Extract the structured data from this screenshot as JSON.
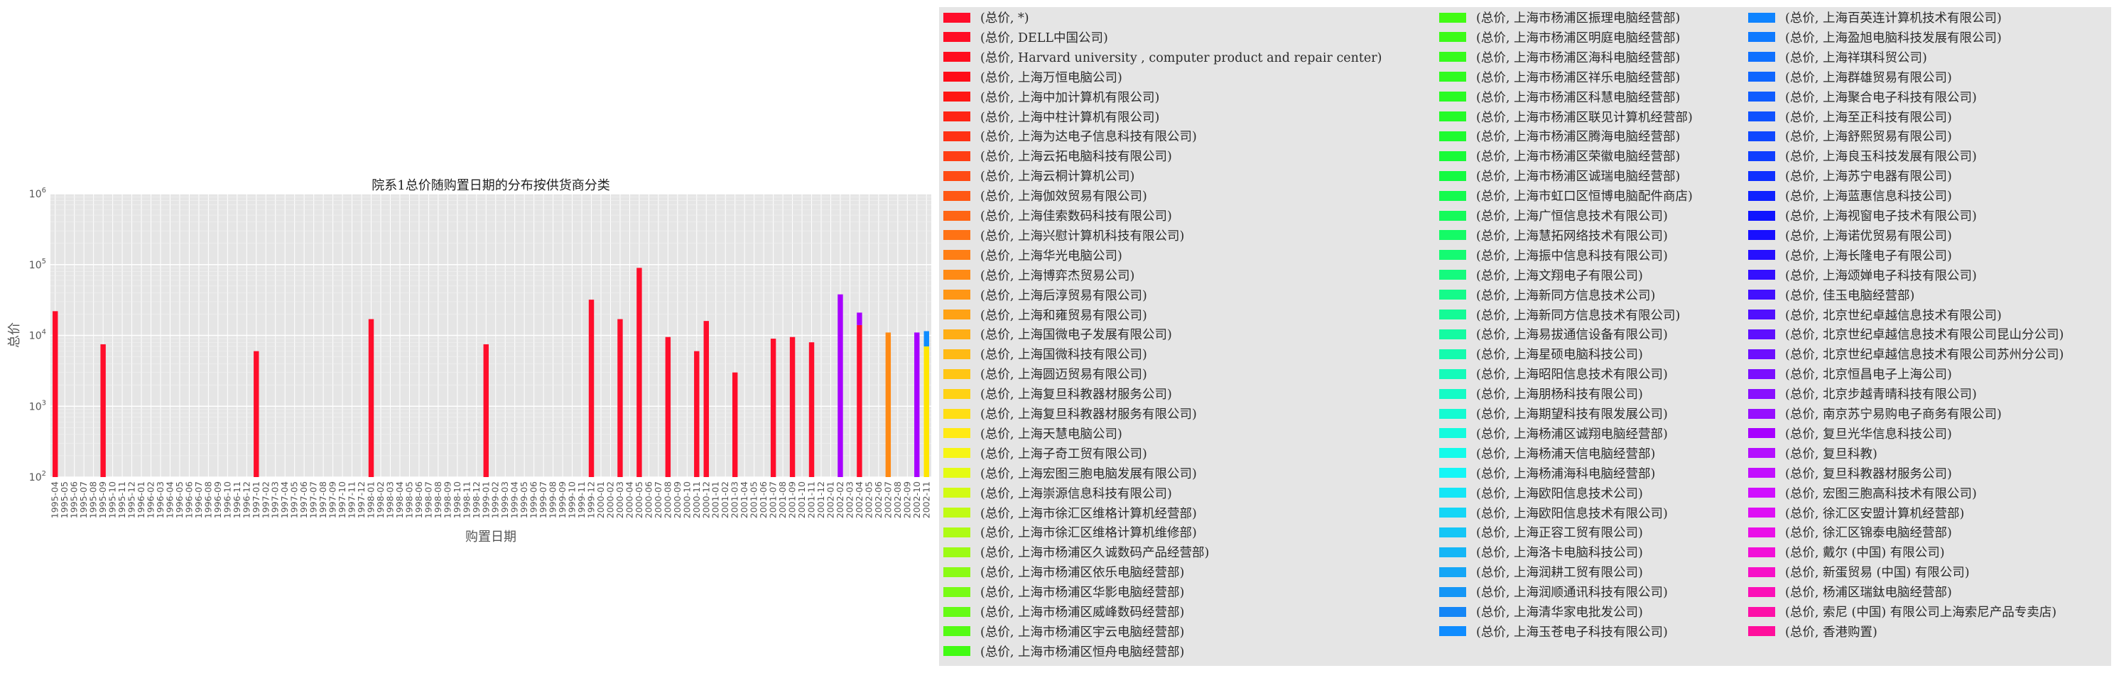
{
  "chart_data": {
    "type": "bar",
    "title": "院系1总价随购置日期的分布按供货商分类",
    "xlabel": "购置日期",
    "ylabel": "总价",
    "yscale": "log",
    "ylim": [
      100,
      1000000
    ],
    "y_ticks": [
      {
        "value": 100,
        "base": "10",
        "exp": "2"
      },
      {
        "value": 1000,
        "base": "10",
        "exp": "3"
      },
      {
        "value": 10000,
        "base": "10",
        "exp": "4"
      },
      {
        "value": 100000,
        "base": "10",
        "exp": "5"
      },
      {
        "value": 1000000,
        "base": "10",
        "exp": "6"
      }
    ],
    "grid": true,
    "stacked": true,
    "legend_position": "outside right",
    "categories": [
      "1995-04",
      "1995-05",
      "1995-06",
      "1995-07",
      "1995-08",
      "1995-09",
      "1995-10",
      "1995-11",
      "1995-12",
      "1996-01",
      "1996-02",
      "1996-03",
      "1996-04",
      "1996-05",
      "1996-06",
      "1996-07",
      "1996-08",
      "1996-09",
      "1996-10",
      "1996-11",
      "1996-12",
      "1997-01",
      "1997-02",
      "1997-03",
      "1997-04",
      "1997-05",
      "1997-06",
      "1997-07",
      "1997-08",
      "1997-09",
      "1997-10",
      "1997-11",
      "1997-12",
      "1998-01",
      "1998-02",
      "1998-03",
      "1998-04",
      "1998-05",
      "1998-06",
      "1998-07",
      "1998-08",
      "1998-09",
      "1998-10",
      "1998-11",
      "1998-12",
      "1999-01",
      "1999-02",
      "1999-03",
      "1999-04",
      "1999-05",
      "1999-06",
      "1999-07",
      "1999-08",
      "1999-09",
      "1999-10",
      "1999-11",
      "1999-12",
      "2000-01",
      "2000-02",
      "2000-03",
      "2000-04",
      "2000-05",
      "2000-06",
      "2000-07",
      "2000-08",
      "2000-09",
      "2000-10",
      "2000-11",
      "2000-12",
      "2001-01",
      "2001-02",
      "2001-03",
      "2001-04",
      "2001-05",
      "2001-06",
      "2001-07",
      "2001-08",
      "2001-09",
      "2001-10",
      "2001-11",
      "2001-12",
      "2002-01",
      "2002-02",
      "2002-03",
      "2002-04",
      "2002-05",
      "2002-06",
      "2002-07",
      "2002-08",
      "2002-09",
      "2002-10",
      "2002-11"
    ],
    "bars": [
      {
        "category": "1995-04",
        "color": "#ff0d2a",
        "y0": 100,
        "y1": 22000
      },
      {
        "category": "1995-09",
        "color": "#ff0d2a",
        "y0": 100,
        "y1": 7500
      },
      {
        "category": "1997-01",
        "color": "#ff0d2a",
        "y0": 100,
        "y1": 6000
      },
      {
        "category": "1998-01",
        "color": "#ff0d2a",
        "y0": 100,
        "y1": 17000
      },
      {
        "category": "1999-01",
        "color": "#ff0d2a",
        "y0": 100,
        "y1": 7500
      },
      {
        "category": "1999-12",
        "color": "#ff0d2a",
        "y0": 100,
        "y1": 32000
      },
      {
        "category": "2000-03",
        "color": "#ff0d2a",
        "y0": 100,
        "y1": 17000
      },
      {
        "category": "2000-05",
        "color": "#ff0d2a",
        "y0": 100,
        "y1": 90000
      },
      {
        "category": "2000-08",
        "color": "#ff0d2a",
        "y0": 100,
        "y1": 9500
      },
      {
        "category": "2000-11",
        "color": "#ff0d2a",
        "y0": 100,
        "y1": 6000
      },
      {
        "category": "2000-12",
        "color": "#ff0d2a",
        "y0": 100,
        "y1": 16000
      },
      {
        "category": "2001-03",
        "color": "#ff0d2a",
        "y0": 100,
        "y1": 3000
      },
      {
        "category": "2001-07",
        "color": "#ff0d2a",
        "y0": 100,
        "y1": 9000
      },
      {
        "category": "2001-09",
        "color": "#ff0d2a",
        "y0": 100,
        "y1": 9500
      },
      {
        "category": "2001-11",
        "color": "#ff0d2a",
        "y0": 100,
        "y1": 8000
      },
      {
        "category": "2002-02",
        "color": "#a700ff",
        "y0": 100,
        "y1": 38000
      },
      {
        "category": "2002-04",
        "color": "#ff0d2a",
        "y0": 100,
        "y1": 14000
      },
      {
        "category": "2002-04",
        "color": "#a700ff",
        "y0": 14000,
        "y1": 21000
      },
      {
        "category": "2002-07",
        "color": "#ff8a14",
        "y0": 100,
        "y1": 11000
      },
      {
        "category": "2002-10",
        "color": "#a700ff",
        "y0": 100,
        "y1": 11000
      },
      {
        "category": "2002-11",
        "color": "#ffe600",
        "y0": 100,
        "y1": 7000
      },
      {
        "category": "2002-11",
        "color": "#0f8cff",
        "y0": 7000,
        "y1": 11500
      }
    ],
    "legend": [
      {
        "label": "(总价, *)",
        "color": "#ff0d2a"
      },
      {
        "label": "(总价, DELL中国公司)",
        "color": "#ff0d24"
      },
      {
        "label": "(总价, Harvard university , computer product and repair center)",
        "color": "#ff0d1e"
      },
      {
        "label": "(总价, 上海万恒电脑公司)",
        "color": "#ff0d18"
      },
      {
        "label": "(总价, 上海中加计算机有限公司)",
        "color": "#ff1714"
      },
      {
        "label": "(总价, 上海中柱计算机有限公司)",
        "color": "#ff2414"
      },
      {
        "label": "(总价, 上海为达电子信息科技有限公司)",
        "color": "#ff3114"
      },
      {
        "label": "(总价, 上海云拓电脑科技有限公司)",
        "color": "#ff3e14"
      },
      {
        "label": "(总价, 上海云桐计算机公司)",
        "color": "#ff4b14"
      },
      {
        "label": "(总价, 上海伽效贸易有限公司)",
        "color": "#ff5814"
      },
      {
        "label": "(总价, 上海佳索数码科技有限公司)",
        "color": "#ff6514"
      },
      {
        "label": "(总价, 上海兴慰计算机科技有限公司)",
        "color": "#ff7214"
      },
      {
        "label": "(总价, 上海华光电脑公司)",
        "color": "#ff7e14"
      },
      {
        "label": "(总价, 上海博弈杰贸易公司)",
        "color": "#ff8a14"
      },
      {
        "label": "(总价, 上海后淳贸易有限公司)",
        "color": "#ff9614"
      },
      {
        "label": "(总价, 上海和雍贸易有限公司)",
        "color": "#ffa214"
      },
      {
        "label": "(总价, 上海国微电子发展有限公司)",
        "color": "#ffae14"
      },
      {
        "label": "(总价, 上海国微科技有限公司)",
        "color": "#ffba14"
      },
      {
        "label": "(总价, 上海圆迈贸易有限公司)",
        "color": "#ffc614"
      },
      {
        "label": "(总价, 上海复旦科教器材服务公司)",
        "color": "#ffd214"
      },
      {
        "label": "(总价, 上海复旦科教器材服务有限公司)",
        "color": "#ffde14"
      },
      {
        "label": "(总价, 上海天慧电脑公司)",
        "color": "#ffea14"
      },
      {
        "label": "(总价, 上海子奇工贸有限公司)",
        "color": "#f6f514"
      },
      {
        "label": "(总价, 上海宏图三胞电脑发展有限公司)",
        "color": "#e4fb14"
      },
      {
        "label": "(总价, 上海崇源信息科技有限公司)",
        "color": "#d2fb14"
      },
      {
        "label": "(总价, 上海市徐汇区维格计算机经营部)",
        "color": "#c0fb14"
      },
      {
        "label": "(总价, 上海市徐汇区维格计算机维修部)",
        "color": "#aefb14"
      },
      {
        "label": "(总价, 上海市杨浦区久诚数码产品经营部)",
        "color": "#9cfb14"
      },
      {
        "label": "(总价, 上海市杨浦区依乐电脑经营部)",
        "color": "#8afb14"
      },
      {
        "label": "(总价, 上海市杨浦区华影电脑经营部)",
        "color": "#78fb14"
      },
      {
        "label": "(总价, 上海市杨浦区威峰数码经营部)",
        "color": "#66fb14"
      },
      {
        "label": "(总价, 上海市杨浦区宇云电脑经营部)",
        "color": "#54fb14"
      },
      {
        "label": "(总价, 上海市杨浦区恒舟电脑经营部)",
        "color": "#42fb14"
      },
      {
        "label": "(总价, 上海市杨浦区振理电脑经营部)",
        "color": "#42fb14"
      },
      {
        "label": "(总价, 上海市杨浦区明庭电脑经营部)",
        "color": "#3cfb18"
      },
      {
        "label": "(总价, 上海市杨浦区海科电脑经营部)",
        "color": "#36fb1c"
      },
      {
        "label": "(总价, 上海市杨浦区祥乐电脑经营部)",
        "color": "#30fb20"
      },
      {
        "label": "(总价, 上海市杨浦区科慧电脑经营部)",
        "color": "#2afb24"
      },
      {
        "label": "(总价, 上海市杨浦区联见计算机经营部)",
        "color": "#24fb28"
      },
      {
        "label": "(总价, 上海市杨浦区腾海电脑经营部)",
        "color": "#1efb30"
      },
      {
        "label": "(总价, 上海市杨浦区荣徽电脑经营部)",
        "color": "#18fb38"
      },
      {
        "label": "(总价, 上海市杨浦区诚瑞电脑经营部)",
        "color": "#14fb42"
      },
      {
        "label": "(总价, 上海市虹口区恒博电脑配件商店)",
        "color": "#14fb4e"
      },
      {
        "label": "(总价, 上海广恒信息技术有限公司)",
        "color": "#14fb5a"
      },
      {
        "label": "(总价, 上海慧拓网络技术有限公司)",
        "color": "#14fb66"
      },
      {
        "label": "(总价, 上海振中信息科技有限公司)",
        "color": "#14fb72"
      },
      {
        "label": "(总价, 上海文翔电子有限公司)",
        "color": "#14fb7e"
      },
      {
        "label": "(总价, 上海新同方信息技术公司)",
        "color": "#14fb8a"
      },
      {
        "label": "(总价, 上海新同方信息技术有限公司)",
        "color": "#14fb96"
      },
      {
        "label": "(总价, 上海易拔通信设备有限公司)",
        "color": "#14fba2"
      },
      {
        "label": "(总价, 上海星硕电脑科技公司)",
        "color": "#14fbae"
      },
      {
        "label": "(总价, 上海昭阳信息技术有限公司)",
        "color": "#14fbba"
      },
      {
        "label": "(总价, 上海朋杨科技有限公司)",
        "color": "#14fbc6"
      },
      {
        "label": "(总价, 上海期望科技有限发展公司)",
        "color": "#14fbd2"
      },
      {
        "label": "(总价, 上海杨浦区诚翔电脑经营部)",
        "color": "#14fbde"
      },
      {
        "label": "(总价, 上海杨浦天信电脑经营部)",
        "color": "#14fbea"
      },
      {
        "label": "(总价, 上海杨浦海科电脑经营部)",
        "color": "#14f6f6"
      },
      {
        "label": "(总价, 上海欧阳信息技术公司)",
        "color": "#14e6f6"
      },
      {
        "label": "(总价, 上海欧阳信息技术有限公司)",
        "color": "#14d6f6"
      },
      {
        "label": "(总价, 上海正容工贸有限公司)",
        "color": "#14c6f6"
      },
      {
        "label": "(总价, 上海洛卡电脑科技公司)",
        "color": "#14b6f6"
      },
      {
        "label": "(总价, 上海润耕工贸有限公司)",
        "color": "#14a6f6"
      },
      {
        "label": "(总价, 上海润顺通讯科技有限公司)",
        "color": "#1496f6"
      },
      {
        "label": "(总价, 上海清华家电批发公司)",
        "color": "#1486f6"
      },
      {
        "label": "(总价, 上海玉苍电子科技有限公司)",
        "color": "#0f8cff"
      },
      {
        "label": "(总价, 上海百英连计算机技术有限公司)",
        "color": "#0f84ff"
      },
      {
        "label": "(总价, 上海盈旭电脑科技发展有限公司)",
        "color": "#0f7aff"
      },
      {
        "label": "(总价, 上海祥琪科贸公司)",
        "color": "#0f70ff"
      },
      {
        "label": "(总价, 上海群雄贸易有限公司)",
        "color": "#0f66ff"
      },
      {
        "label": "(总价, 上海聚合电子科技有限公司)",
        "color": "#0f5cff"
      },
      {
        "label": "(总价, 上海至正科技有限公司)",
        "color": "#0f52ff"
      },
      {
        "label": "(总价, 上海舒熙贸易有限公司)",
        "color": "#0f48ff"
      },
      {
        "label": "(总价, 上海良玉科技发展有限公司)",
        "color": "#0f3eff"
      },
      {
        "label": "(总价, 上海苏宁电器有限公司)",
        "color": "#0f30ff"
      },
      {
        "label": "(总价, 上海蓝惠信息科技公司)",
        "color": "#0f22ff"
      },
      {
        "label": "(总价, 上海视窗电子技术有限公司)",
        "color": "#0f14ff"
      },
      {
        "label": "(总价, 上海诺优贸易有限公司)",
        "color": "#180fff"
      },
      {
        "label": "(总价, 上海长隆电子有限公司)",
        "color": "#260fff"
      },
      {
        "label": "(总价, 上海颂婵电子科技有限公司)",
        "color": "#340fff"
      },
      {
        "label": "(总价, 佳玉电脑经营部)",
        "color": "#420fff"
      },
      {
        "label": "(总价, 北京世纪卓越信息技术有限公司)",
        "color": "#500fff"
      },
      {
        "label": "(总价, 北京世纪卓越信息技术有限公司昆山分公司)",
        "color": "#5e0fff"
      },
      {
        "label": "(总价, 北京世纪卓越信息技术有限公司苏州分公司)",
        "color": "#6c0fff"
      },
      {
        "label": "(总价, 北京恒昌电子上海公司)",
        "color": "#7a0fff"
      },
      {
        "label": "(总价, 北京步越青晴科技有限公司)",
        "color": "#880fff"
      },
      {
        "label": "(总价, 南京苏宁易购电子商务有限公司)",
        "color": "#960fff"
      },
      {
        "label": "(总价, 复旦光华信息科技公司)",
        "color": "#a700ff"
      },
      {
        "label": "(总价, 复旦科教)",
        "color": "#b40fff"
      },
      {
        "label": "(总价, 复旦科教器材服务公司)",
        "color": "#c20fff"
      },
      {
        "label": "(总价, 宏图三胞高科技术有限公司)",
        "color": "#d00fff"
      },
      {
        "label": "(总价, 徐汇区安盟计算机经营部)",
        "color": "#de0ff5"
      },
      {
        "label": "(总价, 徐汇区锦泰电脑经营部)",
        "color": "#ea0fe8"
      },
      {
        "label": "(总价, 戴尔 (中国) 有限公司)",
        "color": "#f20fd8"
      },
      {
        "label": "(总价, 新蛋贸易 (中国) 有限公司)",
        "color": "#f70fc8"
      },
      {
        "label": "(总价, 杨浦区瑞鈦电脑经营部)",
        "color": "#fb0fb8"
      },
      {
        "label": "(总价, 索尼 (中国) 有限公司上海索尼产品专卖店)",
        "color": "#fd0fa8"
      },
      {
        "label": "(总价, 香港购置)",
        "color": "#ff0f9c"
      }
    ]
  }
}
